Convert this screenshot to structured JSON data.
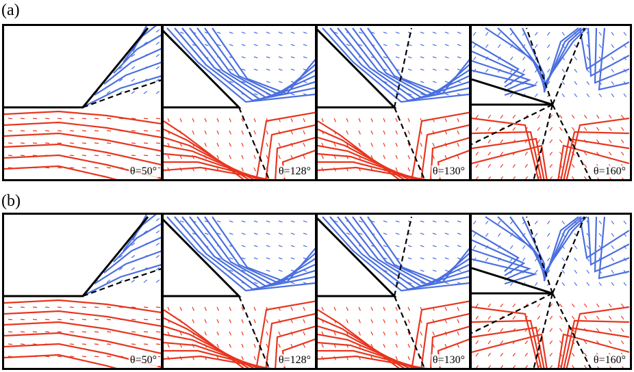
{
  "rows": [
    {
      "label": "(a)",
      "panels": [
        {
          "angle": "θ=50°"
        },
        {
          "angle": "θ=128°"
        },
        {
          "angle": "θ=130°"
        },
        {
          "angle": "θ=160°"
        }
      ]
    },
    {
      "label": "(b)",
      "panels": [
        {
          "angle": "θ=50°"
        },
        {
          "angle": "θ=128°"
        },
        {
          "angle": "θ=130°"
        },
        {
          "angle": "θ=160°"
        }
      ]
    }
  ],
  "colors": {
    "upper_fluid": "#4a6fe0",
    "lower_fluid": "#e8351e",
    "interface": "#000000"
  },
  "panel_types": [
    "wedge-50",
    "wedge-128",
    "wedge-130",
    "wedge-160"
  ]
}
